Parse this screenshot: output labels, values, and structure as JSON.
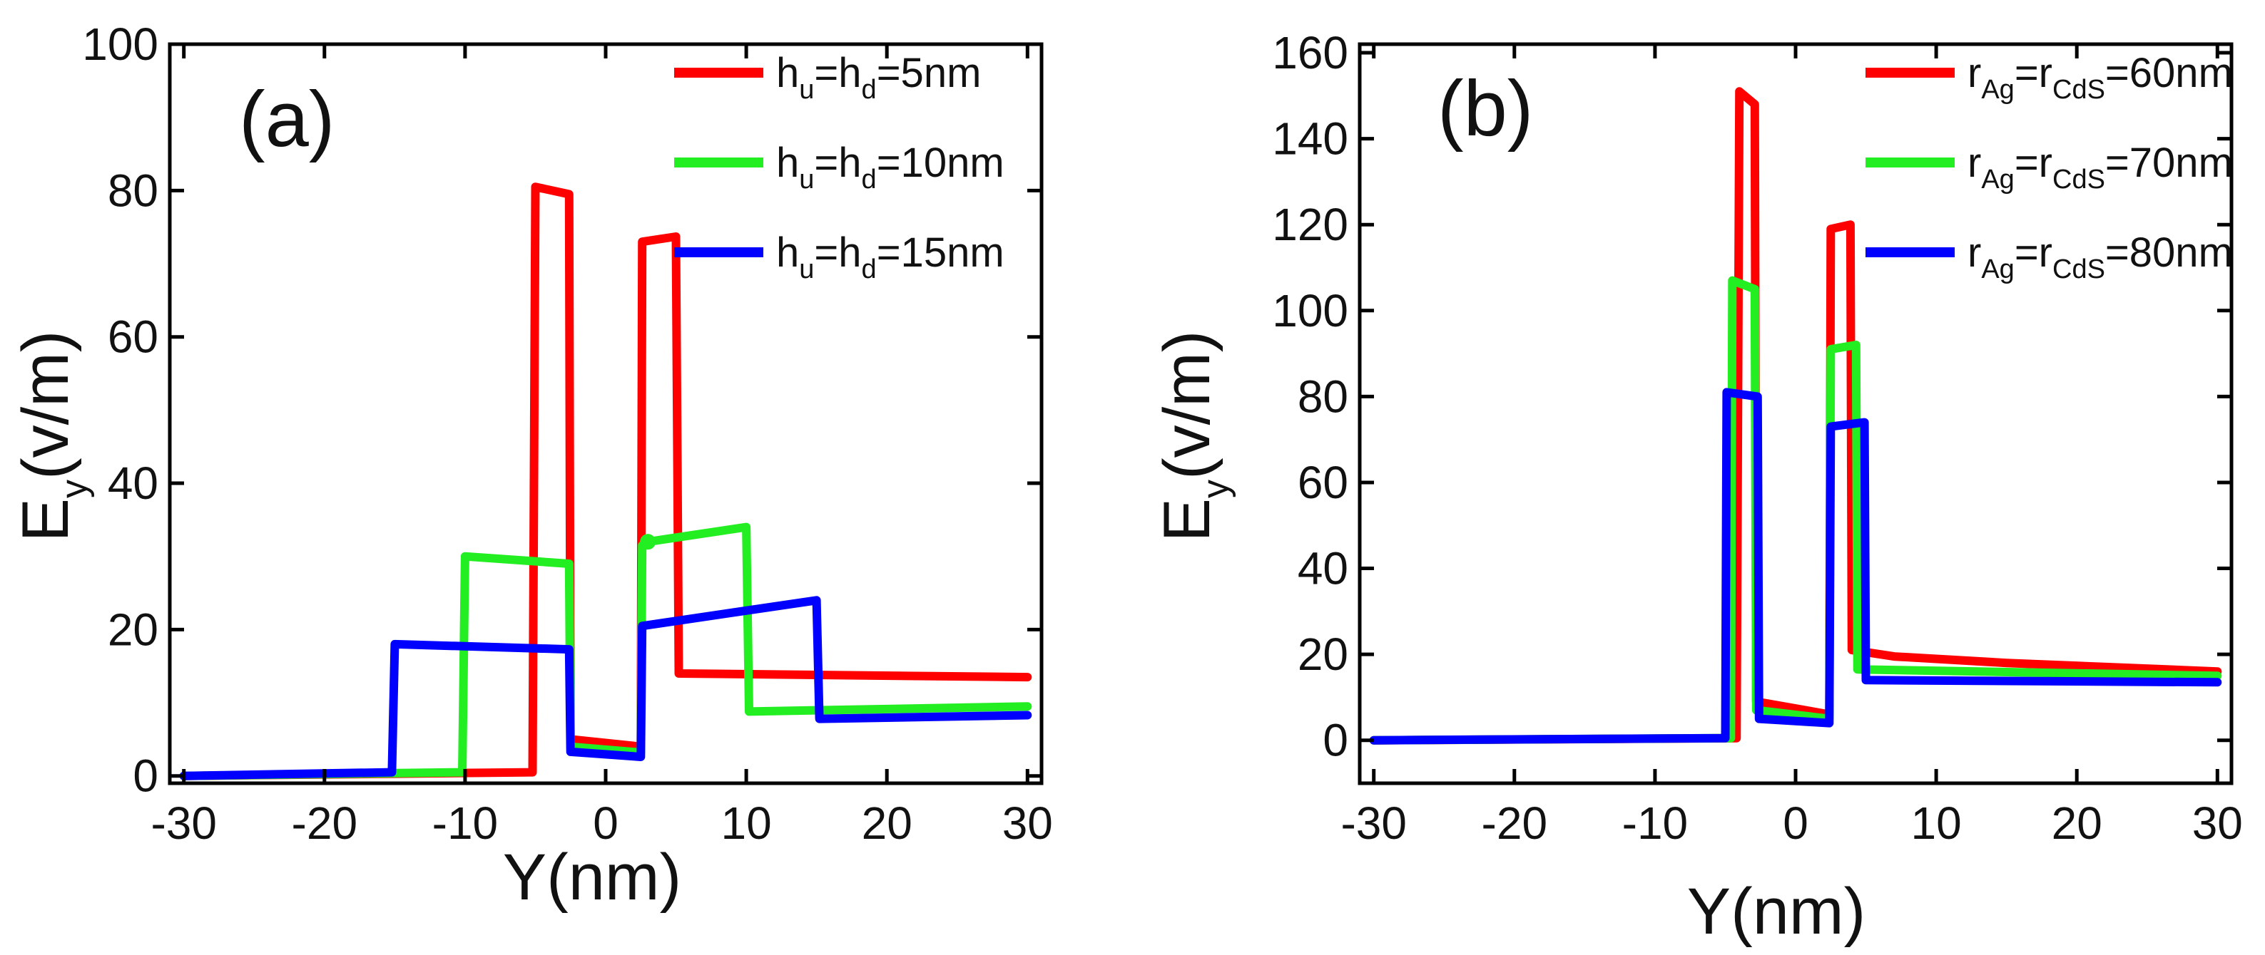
{
  "figure": {
    "panels": [
      "(a)",
      "(b)"
    ]
  },
  "chart_data": [
    {
      "type": "line",
      "panel_label": "(a)",
      "xlabel": "Y(nm)",
      "ylabel": {
        "main": "E",
        "sub": "y",
        "unit": "(v/m)"
      },
      "xlim": [
        -31,
        31
      ],
      "ylim": [
        -1,
        100
      ],
      "xticks": [
        -30,
        -20,
        -10,
        0,
        10,
        20,
        30
      ],
      "xtick_labels": [
        "-30",
        "-20",
        "-10",
        "0",
        "10",
        "20",
        "30"
      ],
      "yticks": [
        0,
        20,
        40,
        60,
        80,
        100
      ],
      "ytick_labels": [
        "0",
        "20",
        "40",
        "60",
        "80",
        "100"
      ],
      "legend_position": "top-right",
      "series": [
        {
          "name": "h_u=h_d=5nm",
          "legend": {
            "a": "h",
            "a_sub": "u",
            "b": "=h",
            "b_sub": "d",
            "c": "=5nm"
          },
          "color": "#ff0000",
          "x": [
            -30,
            -5.2,
            -5,
            -2.6,
            -2.5,
            2.5,
            2.6,
            5,
            5.2,
            30
          ],
          "y": [
            0,
            0.5,
            80.5,
            79.5,
            5,
            4,
            73,
            73.7,
            14,
            13.5
          ]
        },
        {
          "name": "h_u=h_d=10nm",
          "legend": {
            "a": "h",
            "a_sub": "u",
            "b": "=h",
            "b_sub": "d",
            "c": "=10nm"
          },
          "color": "#22ee22",
          "x": [
            -30,
            -10.2,
            -10,
            -2.6,
            -2.5,
            2.5,
            2.6,
            3,
            10,
            10.2,
            30
          ],
          "y": [
            0,
            0.5,
            30,
            29,
            4,
            3.2,
            31.5,
            32,
            34,
            8.8,
            9.5
          ],
          "markers": [
            {
              "x": 3,
              "y": 32
            }
          ]
        },
        {
          "name": "h_u=h_d=15nm",
          "legend": {
            "a": "h",
            "a_sub": "u",
            "b": "=h",
            "b_sub": "d",
            "c": "=15nm"
          },
          "color": "#0000ff",
          "x": [
            -30,
            -15.2,
            -15,
            -2.6,
            -2.5,
            2.5,
            2.6,
            15,
            15.2,
            30
          ],
          "y": [
            0,
            0.5,
            18,
            17.3,
            3.3,
            2.6,
            20.5,
            24,
            7.8,
            8.3
          ]
        }
      ]
    },
    {
      "type": "line",
      "panel_label": "(b)",
      "xlabel": "Y(nm)",
      "ylabel": {
        "main": "E",
        "sub": "y",
        "unit": "(v/m)"
      },
      "xlim": [
        -31,
        31
      ],
      "ylim": [
        -10,
        162
      ],
      "xticks": [
        -30,
        -20,
        -10,
        0,
        10,
        20,
        30
      ],
      "xtick_labels": [
        "-30",
        "-20",
        "-10",
        "0",
        "10",
        "20",
        "30"
      ],
      "yticks": [
        0,
        20,
        40,
        60,
        80,
        100,
        120,
        140,
        160
      ],
      "ytick_labels": [
        "0",
        "20",
        "40",
        "60",
        "80",
        "100",
        "120",
        "140",
        "160"
      ],
      "legend_position": "top-right",
      "series": [
        {
          "name": "r_Ag=r_CdS=60nm",
          "legend": {
            "a": "r",
            "a_sub": "Ag",
            "b": "=r",
            "b_sub": "CdS",
            "c": "=60nm"
          },
          "color": "#ff0000",
          "x": [
            -30,
            -4.2,
            -4,
            -2.9,
            -2.8,
            2.4,
            2.5,
            3.9,
            4,
            7,
            15,
            30
          ],
          "y": [
            0,
            0.5,
            151,
            148,
            9,
            6,
            119,
            120,
            21,
            19.5,
            18,
            16
          ]
        },
        {
          "name": "r_Ag=r_CdS=70nm",
          "legend": {
            "a": "r",
            "a_sub": "Ag",
            "b": "=r",
            "b_sub": "CdS",
            "c": "=70nm"
          },
          "color": "#22ee22",
          "x": [
            -30,
            -4.6,
            -4.5,
            -2.9,
            -2.8,
            2.4,
            2.5,
            4.3,
            4.4,
            30
          ],
          "y": [
            0,
            0.5,
            107,
            105,
            7,
            5,
            91,
            92,
            16.5,
            15
          ]
        },
        {
          "name": "r_Ag=r_CdS=80nm",
          "legend": {
            "a": "r",
            "a_sub": "Ag",
            "b": "=r",
            "b_sub": "CdS",
            "c": "=80nm"
          },
          "color": "#0000ff",
          "x": [
            -30,
            -5,
            -4.9,
            -2.7,
            -2.6,
            2.4,
            2.5,
            4.9,
            5,
            30
          ],
          "y": [
            0,
            0.5,
            81,
            80,
            5,
            4,
            73,
            74,
            14,
            13.5
          ]
        }
      ]
    }
  ]
}
